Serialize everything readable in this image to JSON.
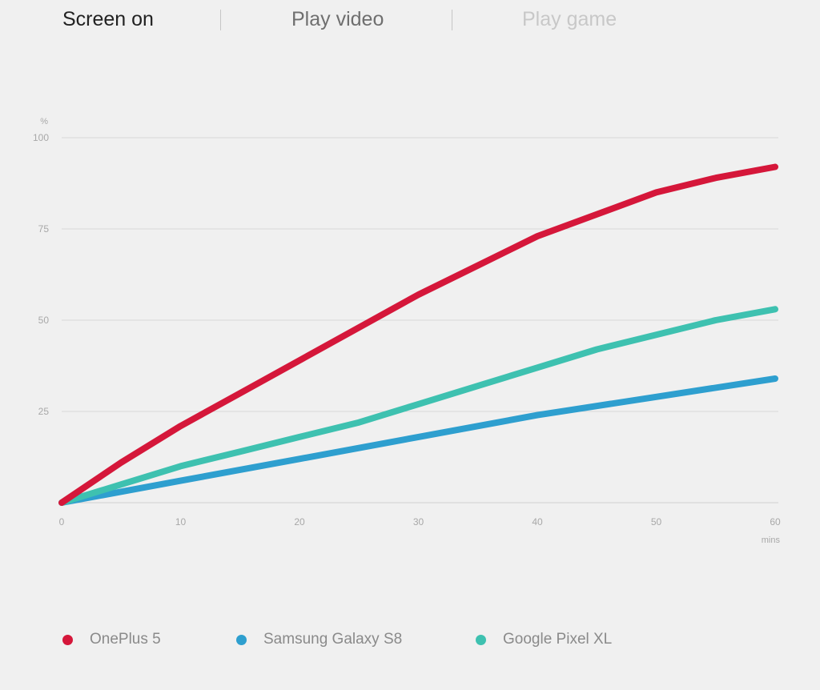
{
  "tabs": [
    {
      "label": "Screen on"
    },
    {
      "label": "Play video"
    },
    {
      "label": "Play game"
    }
  ],
  "chart_data": {
    "type": "line",
    "ylabel": "%",
    "xlabel": "mins",
    "xlim": [
      0,
      60
    ],
    "ylim": [
      0,
      100
    ],
    "x_ticks": [
      "0",
      "10",
      "20",
      "30",
      "40",
      "50",
      "60"
    ],
    "y_ticks": [
      "100",
      "75",
      "50",
      "25"
    ],
    "x_tick_values": [
      0,
      10,
      20,
      30,
      40,
      50,
      60
    ],
    "y_tick_values": [
      100,
      75,
      50,
      25
    ],
    "grid": true,
    "legend_position": "bottom",
    "series": [
      {
        "name": "OnePlus 5",
        "color": "#d5173a",
        "points": [
          [
            0,
            0
          ],
          [
            5,
            11
          ],
          [
            10,
            21
          ],
          [
            15,
            30
          ],
          [
            20,
            39
          ],
          [
            25,
            48
          ],
          [
            30,
            57
          ],
          [
            35,
            65
          ],
          [
            40,
            73
          ],
          [
            45,
            79
          ],
          [
            50,
            85
          ],
          [
            55,
            89
          ],
          [
            60,
            92
          ]
        ]
      },
      {
        "name": "Samsung Galaxy S8",
        "color": "#2e9fcf",
        "points": [
          [
            0,
            0
          ],
          [
            10,
            6
          ],
          [
            20,
            12
          ],
          [
            30,
            18
          ],
          [
            40,
            24
          ],
          [
            50,
            29
          ],
          [
            60,
            34
          ]
        ]
      },
      {
        "name": "Google Pixel XL",
        "color": "#3ec1b0",
        "points": [
          [
            0,
            0
          ],
          [
            5,
            5
          ],
          [
            10,
            10
          ],
          [
            15,
            14
          ],
          [
            20,
            18
          ],
          [
            25,
            22
          ],
          [
            30,
            27
          ],
          [
            35,
            32
          ],
          [
            40,
            37
          ],
          [
            45,
            42
          ],
          [
            50,
            46
          ],
          [
            55,
            50
          ],
          [
            60,
            53
          ]
        ]
      }
    ]
  }
}
